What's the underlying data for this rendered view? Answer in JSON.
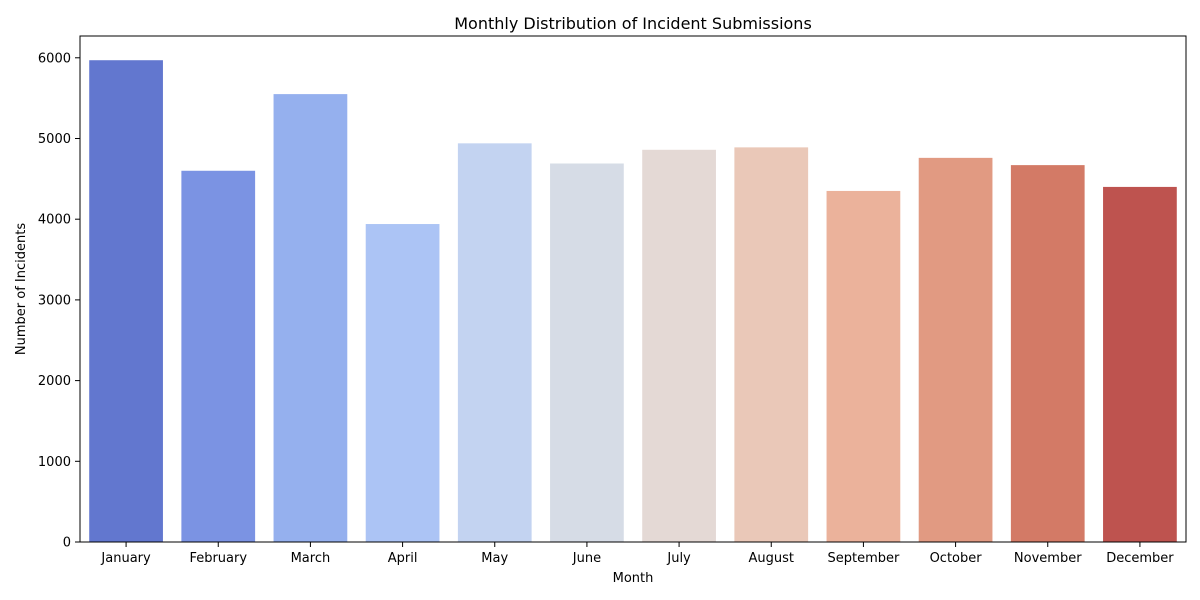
{
  "chart_data": {
    "type": "bar",
    "title": "Monthly Distribution of Incident Submissions",
    "xlabel": "Month",
    "ylabel": "Number of Incidents",
    "categories": [
      "January",
      "February",
      "March",
      "April",
      "May",
      "June",
      "July",
      "August",
      "September",
      "October",
      "November",
      "December"
    ],
    "values": [
      5970,
      4600,
      5550,
      3940,
      4940,
      4690,
      4860,
      4890,
      4350,
      4760,
      4670,
      4400
    ],
    "colors": [
      "#6277cf",
      "#7b93e3",
      "#95b0ee",
      "#acc4f5",
      "#c3d3f1",
      "#d6dce6",
      "#e4d9d5",
      "#eac8b8",
      "#ebb29b",
      "#e19a82",
      "#d37a66",
      "#be534f"
    ],
    "ylim": [
      0,
      6270
    ],
    "yticks": [
      0,
      1000,
      2000,
      3000,
      4000,
      5000,
      6000
    ],
    "grid": false,
    "legend": "none"
  }
}
